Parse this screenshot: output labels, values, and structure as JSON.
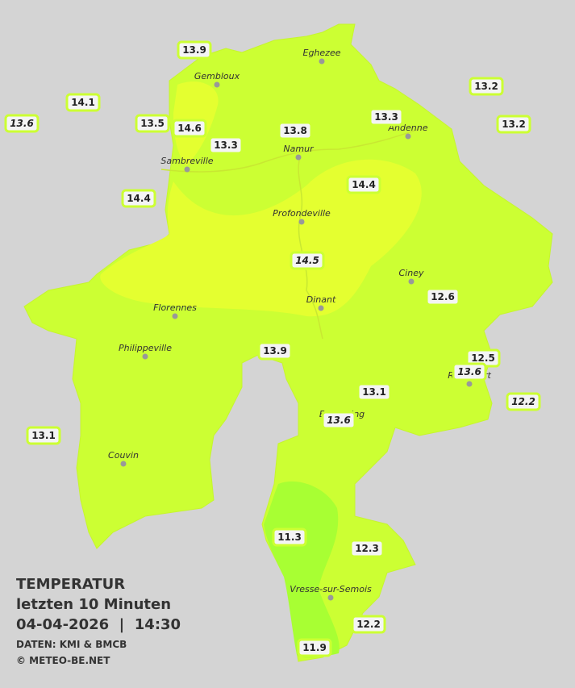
{
  "legend": {
    "title": "TEMPERATUR",
    "period": "letzten 10 Minuten",
    "datetime": "04-04-2026  |  14:30",
    "source": "DATEN: KMI & BMCB",
    "copyright": "© METEO-BE.NET"
  },
  "stations": [
    "13.9",
    "14.1",
    "13.5",
    "14.6",
    "13.3",
    "13.8",
    "13.3",
    "13.2",
    "13.2",
    "14.4",
    "14.4",
    "12.6",
    "13.9",
    "12.5",
    "13.1",
    "13.1",
    "11.3",
    "12.3",
    "12.2",
    "11.9"
  ],
  "stations_italic": [
    "13.6",
    "14.5",
    "13.6",
    "12.2",
    "13.6"
  ],
  "cities": [
    "Eghezee",
    "Gembloux",
    "Andenne",
    "Namur",
    "Sambreville",
    "Profondeville",
    "Ciney",
    "Dinant",
    "Florennes",
    "Philippeville",
    "Rochefort",
    "Beauraing",
    "Couvin",
    "Vresse-sur-Semois"
  ]
}
